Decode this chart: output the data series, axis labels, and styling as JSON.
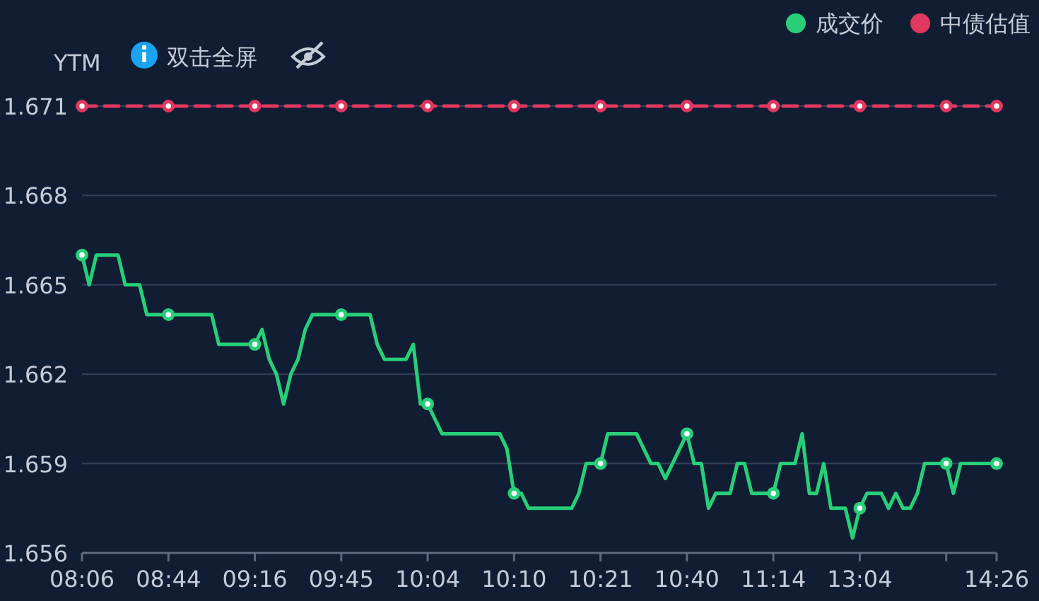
{
  "chart_data": {
    "type": "line",
    "ylabel": "YTM",
    "annotations": [
      "双击全屏"
    ],
    "categories": [
      "08:06",
      null,
      null,
      null,
      null,
      null,
      null,
      null,
      null,
      null,
      null,
      null,
      "08:44",
      null,
      null,
      null,
      null,
      null,
      null,
      null,
      null,
      null,
      null,
      null,
      "09:16",
      null,
      null,
      null,
      null,
      null,
      null,
      null,
      null,
      null,
      null,
      null,
      "09:45",
      null,
      null,
      null,
      null,
      null,
      null,
      null,
      null,
      null,
      null,
      null,
      "10:04",
      null,
      null,
      null,
      null,
      null,
      null,
      null,
      null,
      null,
      null,
      null,
      "10:10",
      null,
      null,
      null,
      null,
      null,
      null,
      null,
      null,
      null,
      null,
      null,
      "10:21",
      null,
      null,
      null,
      null,
      null,
      null,
      null,
      null,
      null,
      null,
      null,
      "10:40",
      null,
      null,
      null,
      null,
      null,
      null,
      null,
      null,
      null,
      null,
      null,
      "11:14",
      null,
      null,
      null,
      null,
      null,
      null,
      null,
      null,
      null,
      null,
      null,
      "13:04",
      null,
      null,
      null,
      null,
      null,
      null,
      null,
      null,
      null,
      null,
      null,
      null,
      null,
      null,
      null,
      null,
      null,
      null,
      "14:26"
    ],
    "series": [
      {
        "name": "成交价",
        "color": "#27cf78",
        "line_style": "solid",
        "values": [
          1.666,
          1.665,
          1.666,
          1.666,
          1.666,
          1.666,
          1.665,
          1.665,
          1.665,
          1.664,
          1.664,
          1.664,
          1.664,
          1.664,
          1.664,
          1.664,
          1.664,
          1.664,
          1.664,
          1.663,
          1.663,
          1.663,
          1.663,
          1.663,
          1.663,
          1.6635,
          1.6625,
          1.662,
          1.661,
          1.662,
          1.6625,
          1.6635,
          1.664,
          1.664,
          1.664,
          1.664,
          1.664,
          1.664,
          1.664,
          1.664,
          1.664,
          1.663,
          1.6625,
          1.6625,
          1.6625,
          1.6625,
          1.663,
          1.661,
          1.661,
          1.6605,
          1.66,
          1.66,
          1.66,
          1.66,
          1.66,
          1.66,
          1.66,
          1.66,
          1.66,
          1.6595,
          1.658,
          1.658,
          1.6575,
          1.6575,
          1.6575,
          1.6575,
          1.6575,
          1.6575,
          1.6575,
          1.658,
          1.659,
          1.659,
          1.659,
          1.66,
          1.66,
          1.66,
          1.66,
          1.66,
          1.6595,
          1.659,
          1.659,
          1.6585,
          1.659,
          1.6595,
          1.66,
          1.659,
          1.659,
          1.6575,
          1.658,
          1.658,
          1.658,
          1.659,
          1.659,
          1.658,
          1.658,
          1.658,
          1.658,
          1.659,
          1.659,
          1.659,
          1.66,
          1.658,
          1.658,
          1.659,
          1.6575,
          1.6575,
          1.6575,
          1.6565,
          1.6575,
          1.658,
          1.658,
          1.658,
          1.6575,
          1.658,
          1.6575,
          1.6575,
          1.658,
          1.659,
          1.659,
          1.659,
          1.659,
          1.658,
          1.659,
          1.659,
          1.659,
          1.659,
          1.659,
          1.659
        ]
      },
      {
        "name": "中债估值",
        "color": "#e0385f",
        "line_style": "dashed",
        "values": [
          1.671,
          1.671,
          1.671,
          1.671,
          1.671,
          1.671,
          1.671,
          1.671,
          1.671,
          1.671,
          1.671,
          1.671,
          1.671,
          1.671,
          1.671,
          1.671,
          1.671,
          1.671,
          1.671,
          1.671,
          1.671,
          1.671,
          1.671,
          1.671,
          1.671,
          1.671,
          1.671,
          1.671,
          1.671,
          1.671,
          1.671,
          1.671,
          1.671,
          1.671,
          1.671,
          1.671,
          1.671,
          1.671,
          1.671,
          1.671,
          1.671,
          1.671,
          1.671,
          1.671,
          1.671,
          1.671,
          1.671,
          1.671,
          1.671,
          1.671,
          1.671,
          1.671,
          1.671,
          1.671,
          1.671,
          1.671,
          1.671,
          1.671,
          1.671,
          1.671,
          1.671,
          1.671,
          1.671,
          1.671,
          1.671,
          1.671,
          1.671,
          1.671,
          1.671,
          1.671,
          1.671,
          1.671,
          1.671,
          1.671,
          1.671,
          1.671,
          1.671,
          1.671,
          1.671,
          1.671,
          1.671,
          1.671,
          1.671,
          1.671,
          1.671,
          1.671,
          1.671,
          1.671,
          1.671,
          1.671,
          1.671,
          1.671,
          1.671,
          1.671,
          1.671,
          1.671,
          1.671,
          1.671,
          1.671,
          1.671,
          1.671,
          1.671,
          1.671,
          1.671,
          1.671,
          1.671,
          1.671,
          1.671,
          1.671,
          1.671,
          1.671,
          1.671,
          1.671,
          1.671,
          1.671,
          1.671,
          1.671,
          1.671,
          1.671,
          1.671,
          1.671,
          1.671,
          1.671,
          1.671,
          1.671,
          1.671,
          1.671,
          1.671
        ]
      }
    ],
    "ylim": [
      1.656,
      1.671
    ],
    "yticks": [
      1.656,
      1.659,
      1.662,
      1.665,
      1.668,
      1.671
    ],
    "grid": "y",
    "legend": "top right"
  }
}
